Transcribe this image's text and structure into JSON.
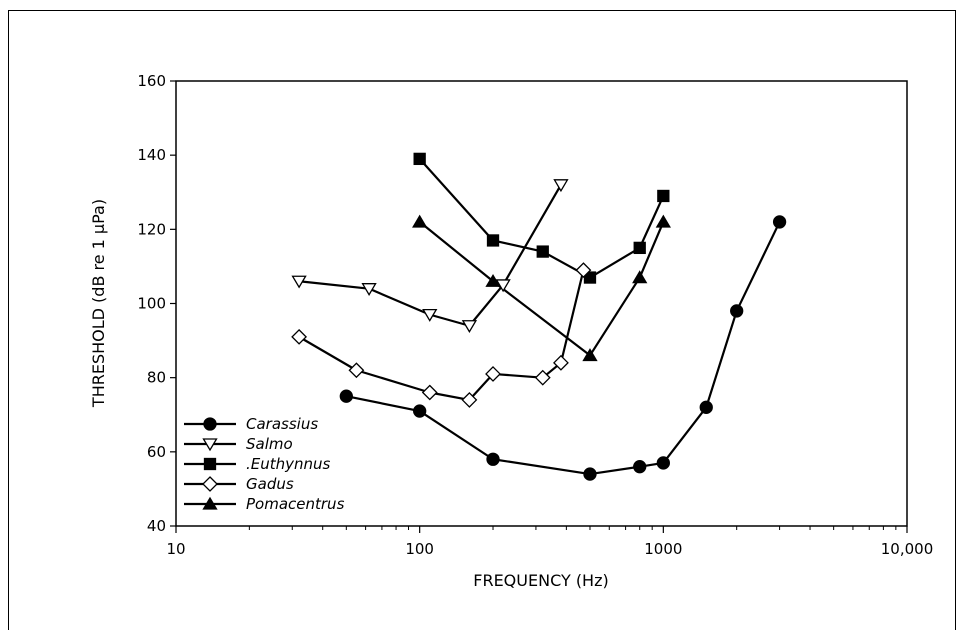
{
  "chart_data": {
    "type": "line",
    "xlabel": "FREQUENCY (Hz)",
    "ylabel": "THRESHOLD (dB re 1 µPa)",
    "xscale": "log",
    "xlim": [
      10,
      10000
    ],
    "ylim": [
      40,
      160
    ],
    "xticks": [
      {
        "value": 10,
        "label": "10"
      },
      {
        "value": 100,
        "label": "100"
      },
      {
        "value": 1000,
        "label": "1000"
      },
      {
        "value": 10000,
        "label": "10,000"
      }
    ],
    "yticks": [
      40,
      60,
      80,
      100,
      120,
      140,
      160
    ],
    "legend_position": "bottom-left",
    "series": [
      {
        "name": "Carassius",
        "marker": "filled-circle",
        "x": [
          50,
          100,
          200,
          500,
          800,
          1000,
          1500,
          2000,
          3000
        ],
        "y": [
          75,
          71,
          58,
          54,
          56,
          57,
          72,
          98,
          122
        ]
      },
      {
        "name": "Salmo",
        "marker": "open-triangle-down",
        "x": [
          32,
          62,
          110,
          160,
          220,
          380
        ],
        "y": [
          106,
          104,
          97,
          94,
          105,
          132
        ]
      },
      {
        "name": ".Euthynnus",
        "marker": "filled-square",
        "x": [
          100,
          200,
          320,
          500,
          800,
          1000
        ],
        "y": [
          139,
          117,
          114,
          107,
          115,
          129
        ]
      },
      {
        "name": "Gadus",
        "marker": "open-diamond",
        "x": [
          32,
          55,
          110,
          160,
          200,
          320,
          380,
          470
        ],
        "y": [
          91,
          82,
          76,
          74,
          81,
          80,
          84,
          109
        ]
      },
      {
        "name": "Pomacentrus",
        "marker": "filled-triangle-up",
        "x": [
          100,
          200,
          500,
          800,
          1000
        ],
        "y": [
          122,
          106,
          86,
          107,
          122
        ]
      }
    ]
  }
}
